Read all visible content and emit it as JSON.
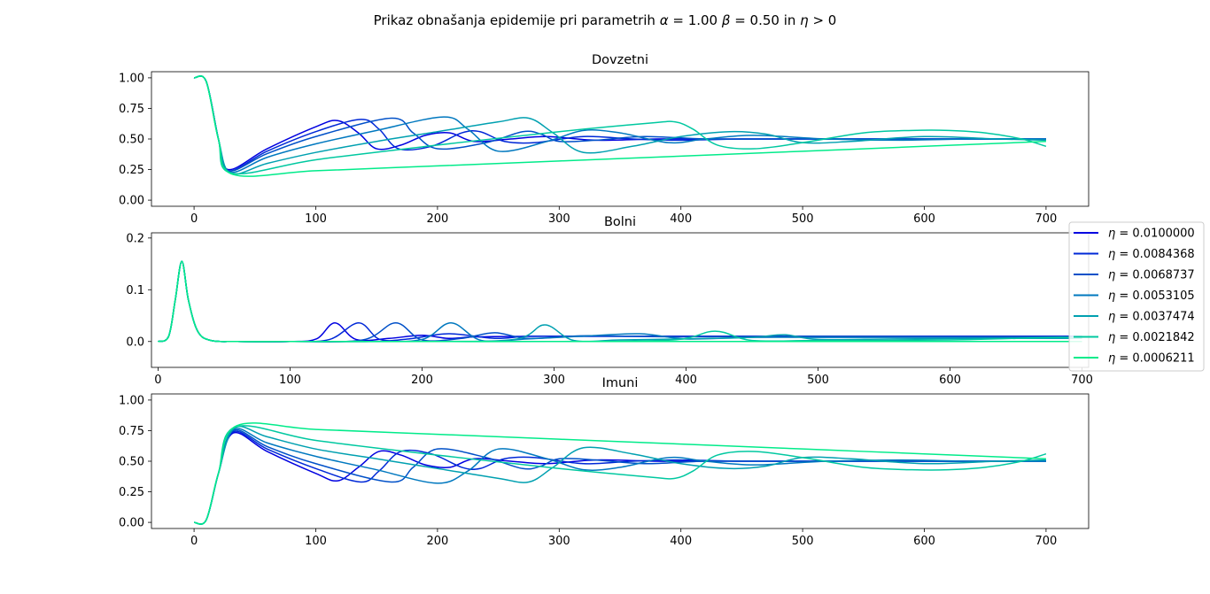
{
  "figure": {
    "title_text": "Prikaz obnašanja epidemije pri parametrih ",
    "title_math": [
      {
        "sym": "α",
        "rest": " = 1.00 "
      },
      {
        "sym": "β",
        "rest": " = 0.50 in "
      },
      {
        "sym": "η",
        "rest": " > 0"
      }
    ]
  },
  "legend": {
    "symbol": "η",
    "entries": [
      {
        "label": " = 0.0100000",
        "color": "#0000e0"
      },
      {
        "label": " = 0.0084368",
        "color": "#0028d7"
      },
      {
        "label": " = 0.0068737",
        "color": "#0050c8"
      },
      {
        "label": " = 0.0053105",
        "color": "#0078bf"
      },
      {
        "label": " = 0.0037474",
        "color": "#00a0b0"
      },
      {
        "label": " = 0.0021842",
        "color": "#00c8a0"
      },
      {
        "label": " = 0.0006211",
        "color": "#00eb8a"
      }
    ]
  },
  "chart_data": [
    {
      "type": "line",
      "title": "Dovzetni",
      "xlim": [
        -35,
        735
      ],
      "ylim": [
        -0.05,
        1.05
      ],
      "xticks": [
        0,
        100,
        200,
        300,
        400,
        500,
        600,
        700
      ],
      "yticks": [
        0.0,
        0.25,
        0.5,
        0.75,
        1.0
      ],
      "ytick_labels": [
        "0.00",
        "0.25",
        "0.50",
        "0.75",
        "1.00"
      ],
      "series": [
        {
          "x": [
            0,
            10,
            20,
            28,
            60,
            100,
            118,
            135,
            150,
            170,
            190,
            210,
            230,
            260,
            290,
            330,
            380,
            430,
            500,
            600,
            700
          ],
          "y": [
            1.0,
            0.97,
            0.5,
            0.25,
            0.42,
            0.6,
            0.65,
            0.55,
            0.42,
            0.45,
            0.53,
            0.55,
            0.48,
            0.5,
            0.52,
            0.49,
            0.5,
            0.5,
            0.5,
            0.5,
            0.5
          ]
        },
        {
          "x": [
            0,
            10,
            20,
            28,
            60,
            100,
            137,
            152,
            168,
            195,
            220,
            235,
            255,
            280,
            320,
            360,
            400,
            450,
            520,
            600,
            700
          ],
          "y": [
            1.0,
            0.97,
            0.5,
            0.24,
            0.4,
            0.56,
            0.66,
            0.58,
            0.42,
            0.44,
            0.55,
            0.56,
            0.48,
            0.47,
            0.52,
            0.5,
            0.49,
            0.5,
            0.5,
            0.5,
            0.5
          ]
        },
        {
          "x": [
            0,
            10,
            20,
            28,
            60,
            100,
            162,
            180,
            200,
            240,
            270,
            285,
            300,
            330,
            370,
            420,
            480,
            560,
            640,
            700
          ],
          "y": [
            1.0,
            0.97,
            0.5,
            0.24,
            0.38,
            0.52,
            0.67,
            0.55,
            0.42,
            0.47,
            0.56,
            0.54,
            0.48,
            0.49,
            0.52,
            0.5,
            0.5,
            0.5,
            0.5,
            0.5
          ]
        },
        {
          "x": [
            0,
            10,
            20,
            29,
            60,
            100,
            150,
            205,
            225,
            250,
            290,
            320,
            350,
            390,
            420,
            460,
            520,
            580,
            640,
            700
          ],
          "y": [
            1.0,
            0.97,
            0.5,
            0.23,
            0.35,
            0.46,
            0.57,
            0.68,
            0.58,
            0.4,
            0.48,
            0.57,
            0.55,
            0.47,
            0.5,
            0.53,
            0.5,
            0.49,
            0.5,
            0.5
          ]
        },
        {
          "x": [
            0,
            10,
            20,
            30,
            60,
            100,
            150,
            200,
            250,
            275,
            295,
            320,
            360,
            400,
            440,
            470,
            500,
            540,
            600,
            660,
            700
          ],
          "y": [
            1.0,
            0.97,
            0.5,
            0.22,
            0.3,
            0.39,
            0.48,
            0.56,
            0.64,
            0.67,
            0.55,
            0.39,
            0.44,
            0.52,
            0.56,
            0.54,
            0.47,
            0.48,
            0.52,
            0.5,
            0.49
          ]
        },
        {
          "x": [
            0,
            10,
            20,
            31,
            100,
            200,
            300,
            375,
            395,
            410,
            430,
            460,
            500,
            550,
            590,
            620,
            650,
            680,
            700
          ],
          "y": [
            1.0,
            0.97,
            0.5,
            0.22,
            0.33,
            0.45,
            0.56,
            0.63,
            0.64,
            0.58,
            0.45,
            0.42,
            0.47,
            0.55,
            0.57,
            0.57,
            0.55,
            0.5,
            0.44
          ]
        },
        {
          "x": [
            0,
            10,
            20,
            32,
            100,
            200,
            300,
            400,
            500,
            600,
            700
          ],
          "y": [
            1.0,
            0.97,
            0.5,
            0.21,
            0.24,
            0.28,
            0.32,
            0.36,
            0.4,
            0.44,
            0.48
          ]
        }
      ]
    },
    {
      "type": "line",
      "title": "Bolni",
      "xlim": [
        -5,
        705
      ],
      "ylim": [
        -0.05,
        0.21
      ],
      "xticks": [
        0,
        100,
        200,
        300,
        400,
        500,
        600,
        700
      ],
      "yticks": [
        0.0,
        0.1,
        0.2
      ],
      "ytick_labels": [
        "0.0",
        "0.1",
        "0.2"
      ],
      "series": [
        {
          "x": [
            0,
            8,
            13,
            18,
            23,
            30,
            40,
            60,
            100,
            120,
            134,
            150,
            175,
            200,
            220,
            240,
            280,
            320,
            400,
            500,
            600,
            700
          ],
          "y": [
            0.0,
            0.01,
            0.08,
            0.155,
            0.08,
            0.02,
            0.002,
            0.0,
            0.0,
            0.005,
            0.036,
            0.004,
            0.006,
            0.012,
            0.006,
            0.009,
            0.01,
            0.01,
            0.01,
            0.01,
            0.01,
            0.01
          ]
        },
        {
          "x": [
            0,
            8,
            13,
            18,
            23,
            30,
            40,
            60,
            100,
            130,
            152,
            168,
            190,
            220,
            255,
            280,
            320,
            400,
            500,
            600,
            700
          ],
          "y": [
            0.0,
            0.01,
            0.08,
            0.155,
            0.08,
            0.02,
            0.002,
            0.0,
            0.0,
            0.004,
            0.036,
            0.004,
            0.005,
            0.015,
            0.006,
            0.01,
            0.01,
            0.01,
            0.01,
            0.01,
            0.01
          ]
        },
        {
          "x": [
            0,
            8,
            13,
            18,
            23,
            30,
            40,
            60,
            100,
            155,
            180,
            200,
            230,
            255,
            280,
            320,
            360,
            400,
            500,
            600,
            700
          ],
          "y": [
            0.0,
            0.01,
            0.08,
            0.155,
            0.08,
            0.02,
            0.002,
            0.0,
            0.0,
            0.003,
            0.036,
            0.003,
            0.006,
            0.017,
            0.006,
            0.011,
            0.01,
            0.009,
            0.01,
            0.009,
            0.009
          ]
        },
        {
          "x": [
            0,
            8,
            13,
            18,
            23,
            30,
            40,
            60,
            100,
            160,
            200,
            222,
            245,
            280,
            320,
            365,
            400,
            450,
            500,
            600,
            700
          ],
          "y": [
            0.0,
            0.01,
            0.08,
            0.155,
            0.08,
            0.02,
            0.002,
            0.0,
            0.0,
            0.0,
            0.004,
            0.036,
            0.002,
            0.005,
            0.01,
            0.015,
            0.005,
            0.008,
            0.008,
            0.008,
            0.008
          ]
        },
        {
          "x": [
            0,
            8,
            13,
            18,
            23,
            30,
            40,
            60,
            100,
            200,
            270,
            293,
            315,
            350,
            400,
            450,
            475,
            500,
            560,
            640,
            700
          ],
          "y": [
            0.0,
            0.01,
            0.08,
            0.155,
            0.08,
            0.02,
            0.002,
            0.0,
            0.0,
            0.0,
            0.004,
            0.032,
            0.002,
            0.003,
            0.005,
            0.008,
            0.013,
            0.004,
            0.005,
            0.006,
            0.006
          ]
        },
        {
          "x": [
            0,
            8,
            13,
            18,
            23,
            30,
            40,
            60,
            100,
            200,
            300,
            390,
            422,
            450,
            500,
            600,
            680,
            700
          ],
          "y": [
            0.0,
            0.01,
            0.08,
            0.155,
            0.08,
            0.02,
            0.002,
            0.0,
            0.0,
            0.0,
            0.0,
            0.003,
            0.02,
            0.002,
            0.002,
            0.003,
            0.008,
            0.006
          ]
        },
        {
          "x": [
            0,
            8,
            13,
            18,
            23,
            30,
            40,
            60,
            100,
            200,
            300,
            400,
            500,
            600,
            700
          ],
          "y": [
            0.0,
            0.01,
            0.08,
            0.155,
            0.08,
            0.02,
            0.002,
            0.0,
            0.0,
            0.0,
            0.0,
            0.0,
            0.0,
            0.0,
            0.0
          ]
        }
      ]
    },
    {
      "type": "line",
      "title": "Imuni",
      "xlim": [
        -35,
        735
      ],
      "ylim": [
        -0.05,
        1.05
      ],
      "xticks": [
        0,
        100,
        200,
        300,
        400,
        500,
        600,
        700
      ],
      "yticks": [
        0.0,
        0.25,
        0.5,
        0.75,
        1.0
      ],
      "ytick_labels": [
        "0.00",
        "0.25",
        "0.50",
        "0.75",
        "1.00"
      ],
      "series": [
        {
          "x": [
            0,
            10,
            20,
            32,
            60,
            100,
            118,
            135,
            152,
            170,
            190,
            210,
            230,
            260,
            290,
            330,
            380,
            430,
            500,
            600,
            700
          ],
          "y": [
            0.0,
            0.02,
            0.4,
            0.73,
            0.58,
            0.4,
            0.34,
            0.45,
            0.58,
            0.55,
            0.47,
            0.45,
            0.52,
            0.5,
            0.48,
            0.51,
            0.5,
            0.5,
            0.5,
            0.5,
            0.5
          ]
        },
        {
          "x": [
            0,
            10,
            20,
            32,
            60,
            100,
            137,
            152,
            170,
            195,
            220,
            235,
            255,
            280,
            320,
            360,
            400,
            450,
            520,
            600,
            700
          ],
          "y": [
            0.0,
            0.02,
            0.4,
            0.74,
            0.6,
            0.44,
            0.33,
            0.42,
            0.58,
            0.56,
            0.45,
            0.44,
            0.52,
            0.53,
            0.48,
            0.5,
            0.51,
            0.5,
            0.5,
            0.5,
            0.5
          ]
        },
        {
          "x": [
            0,
            10,
            20,
            32,
            60,
            100,
            162,
            180,
            200,
            240,
            270,
            285,
            300,
            330,
            370,
            420,
            480,
            560,
            640,
            700
          ],
          "y": [
            0.0,
            0.02,
            0.4,
            0.75,
            0.62,
            0.48,
            0.33,
            0.45,
            0.6,
            0.53,
            0.44,
            0.46,
            0.52,
            0.51,
            0.48,
            0.5,
            0.5,
            0.5,
            0.5,
            0.5
          ]
        },
        {
          "x": [
            0,
            10,
            20,
            32,
            60,
            100,
            150,
            200,
            225,
            250,
            290,
            320,
            350,
            390,
            420,
            460,
            520,
            580,
            640,
            700
          ],
          "y": [
            0.0,
            0.02,
            0.4,
            0.76,
            0.65,
            0.54,
            0.43,
            0.32,
            0.42,
            0.6,
            0.52,
            0.43,
            0.45,
            0.53,
            0.5,
            0.47,
            0.5,
            0.51,
            0.5,
            0.5
          ]
        },
        {
          "x": [
            0,
            10,
            20,
            33,
            60,
            100,
            150,
            200,
            250,
            275,
            295,
            320,
            360,
            400,
            440,
            470,
            500,
            540,
            600,
            660,
            700
          ],
          "y": [
            0.0,
            0.02,
            0.4,
            0.77,
            0.7,
            0.6,
            0.52,
            0.44,
            0.36,
            0.33,
            0.45,
            0.61,
            0.56,
            0.48,
            0.44,
            0.46,
            0.53,
            0.52,
            0.48,
            0.5,
            0.51
          ]
        },
        {
          "x": [
            0,
            10,
            20,
            34,
            100,
            200,
            300,
            375,
            395,
            410,
            430,
            460,
            500,
            550,
            590,
            620,
            650,
            680,
            700
          ],
          "y": [
            0.0,
            0.02,
            0.4,
            0.78,
            0.67,
            0.55,
            0.44,
            0.37,
            0.36,
            0.42,
            0.55,
            0.58,
            0.53,
            0.45,
            0.43,
            0.43,
            0.45,
            0.5,
            0.56
          ]
        },
        {
          "x": [
            0,
            10,
            20,
            35,
            100,
            200,
            300,
            400,
            500,
            600,
            700
          ],
          "y": [
            0.0,
            0.02,
            0.4,
            0.79,
            0.76,
            0.72,
            0.68,
            0.64,
            0.6,
            0.56,
            0.52
          ]
        }
      ]
    }
  ]
}
